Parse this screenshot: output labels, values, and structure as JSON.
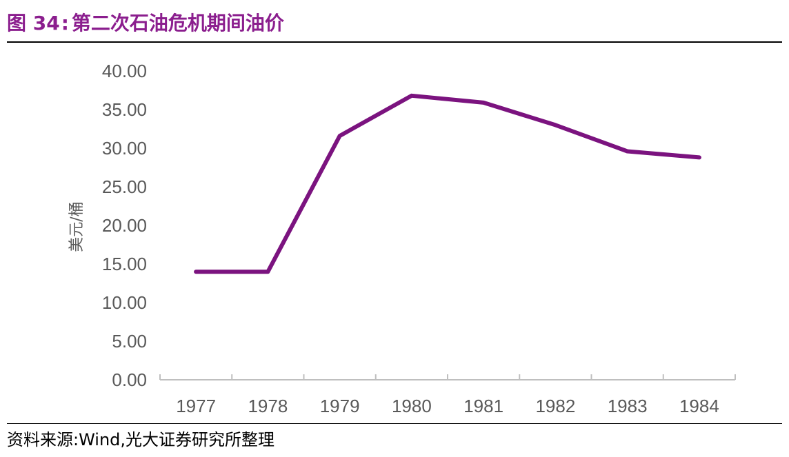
{
  "figure": {
    "number_label": "图 34",
    "separator": ":",
    "title": "第二次石油危机期间油价"
  },
  "source": {
    "text": "资料来源:Wind,光大证券研究所整理"
  },
  "colors": {
    "accent": "#8B1E8E",
    "line": "#7B137F",
    "axis": "#BFBFBF",
    "tick_text": "#595959"
  },
  "chart_data": {
    "type": "line",
    "title": "第二次石油危机期间油价",
    "xlabel": "",
    "ylabel": "美元/桶",
    "categories": [
      "1977",
      "1978",
      "1979",
      "1980",
      "1981",
      "1982",
      "1983",
      "1984"
    ],
    "series": [
      {
        "values": [
          14.0,
          14.0,
          31.6,
          36.8,
          35.9,
          33.0,
          29.6,
          28.8
        ]
      }
    ],
    "ylim": [
      0,
      40
    ],
    "yticks": [
      "0.00",
      "5.00",
      "10.00",
      "15.00",
      "20.00",
      "25.00",
      "30.00",
      "35.00",
      "40.00"
    ],
    "grid": false,
    "legend": "none"
  }
}
